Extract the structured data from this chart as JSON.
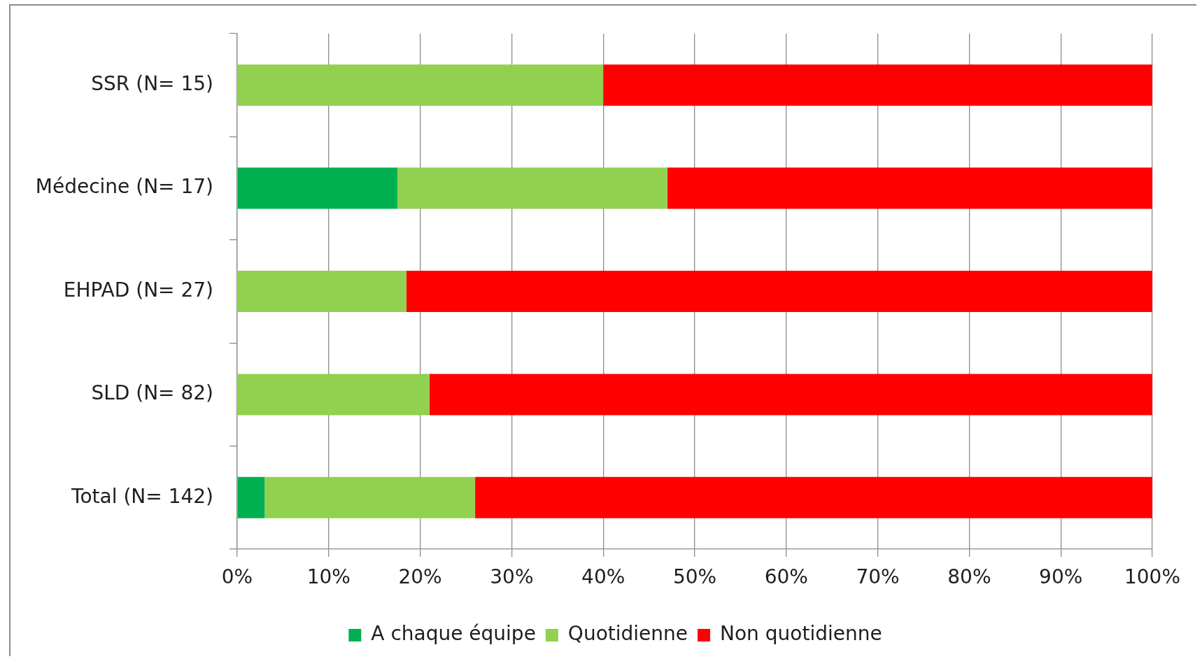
{
  "chart_data": {
    "type": "bar",
    "orientation": "horizontal",
    "stacked": true,
    "categories": [
      "SSR (N= 15)",
      "Médecine (N= 17)",
      "EHPAD (N= 27)",
      "SLD (N= 82)",
      "Total (N= 142)"
    ],
    "series": [
      {
        "name": "A chaque équipe",
        "color": "#00b050",
        "values": [
          null,
          17.5,
          null,
          null,
          3
        ]
      },
      {
        "name": "Quotidienne",
        "color": "#92d050",
        "values": [
          40,
          29.5,
          18.5,
          21,
          23
        ]
      },
      {
        "name": "Non quotidienne",
        "color": "#ff0000",
        "values": [
          60,
          53,
          81.5,
          79,
          74
        ]
      }
    ],
    "xlim": [
      0,
      100
    ],
    "xticks": [
      {
        "value": 0,
        "label": "0%"
      },
      {
        "value": 10,
        "label": "10%"
      },
      {
        "value": 20,
        "label": "20%"
      },
      {
        "value": 30,
        "label": "30%"
      },
      {
        "value": 40,
        "label": "40%"
      },
      {
        "value": 50,
        "label": "50%"
      },
      {
        "value": 60,
        "label": "60%"
      },
      {
        "value": 70,
        "label": "70%"
      },
      {
        "value": 80,
        "label": "80%"
      },
      {
        "value": 90,
        "label": "90%"
      },
      {
        "value": 100,
        "label": "100%"
      }
    ],
    "grid": "x",
    "legend": "bottom"
  }
}
